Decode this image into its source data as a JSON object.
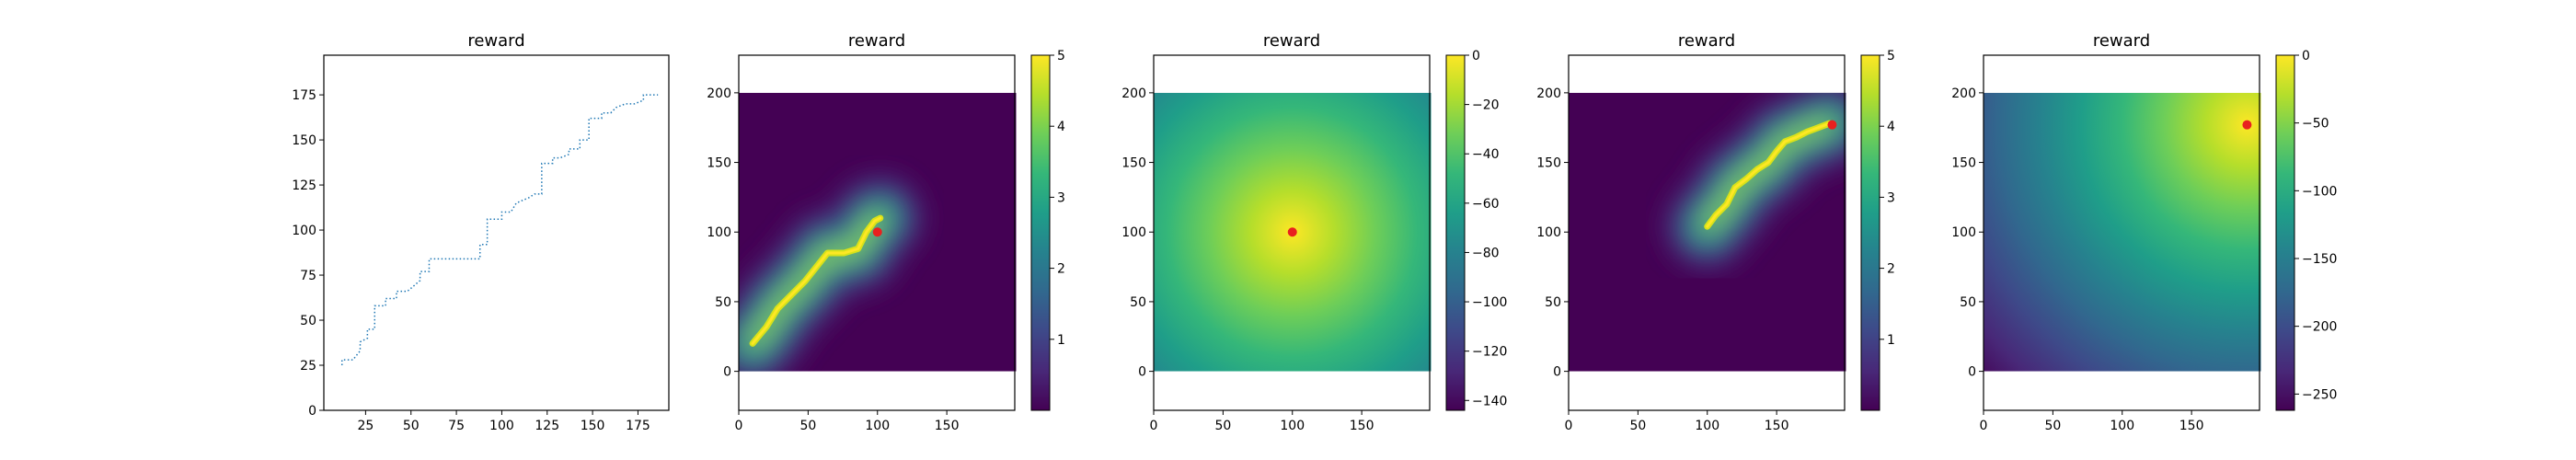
{
  "chart_data": [
    {
      "type": "line",
      "title": "reward",
      "xlabel": "",
      "ylabel": "",
      "xlim": [
        2,
        192
      ],
      "ylim": [
        0,
        197
      ],
      "x_ticks": [
        25,
        50,
        75,
        100,
        125,
        150,
        175
      ],
      "y_ticks": [
        0,
        25,
        50,
        75,
        100,
        125,
        150,
        175
      ],
      "grid": false,
      "line_style": "dotted",
      "line_color": "#1f77b4",
      "series": [
        {
          "points": [
            [
              12,
              25
            ],
            [
              12,
              28
            ],
            [
              18,
              28
            ],
            [
              22,
              33
            ],
            [
              22,
              38
            ],
            [
              26,
              40
            ],
            [
              26,
              45
            ],
            [
              30,
              45
            ],
            [
              30,
              58
            ],
            [
              36,
              58
            ],
            [
              36,
              62
            ],
            [
              42,
              62
            ],
            [
              42,
              66
            ],
            [
              48,
              66
            ],
            [
              55,
              72
            ],
            [
              55,
              77
            ],
            [
              60,
              77
            ],
            [
              60,
              84
            ],
            [
              72,
              84
            ],
            [
              88,
              84
            ],
            [
              88,
              92
            ],
            [
              92,
              92
            ],
            [
              92,
              106
            ],
            [
              100,
              106
            ],
            [
              100,
              110
            ],
            [
              105,
              110
            ],
            [
              108,
              115
            ],
            [
              115,
              118
            ],
            [
              118,
              120
            ],
            [
              122,
              120
            ],
            [
              122,
              137
            ],
            [
              128,
              137
            ],
            [
              128,
              140
            ],
            [
              132,
              140
            ],
            [
              137,
              142
            ],
            [
              137,
              145
            ],
            [
              143,
              145
            ],
            [
              143,
              150
            ],
            [
              148,
              150
            ],
            [
              148,
              162
            ],
            [
              155,
              162
            ],
            [
              155,
              165
            ],
            [
              160,
              165
            ],
            [
              163,
              168
            ],
            [
              168,
              170
            ],
            [
              173,
              170
            ],
            [
              178,
              172
            ],
            [
              178,
              175
            ],
            [
              182,
              175
            ],
            [
              186,
              175
            ]
          ]
        }
      ]
    },
    {
      "type": "heatmap",
      "title": "reward",
      "xlabel": "",
      "ylabel": "",
      "xlim": [
        0,
        199
      ],
      "ylim": [
        -28,
        227
      ],
      "x_ticks": [
        0,
        50,
        100,
        150
      ],
      "y_ticks": [
        0,
        50,
        100,
        150,
        200
      ],
      "extent": [
        0,
        200,
        0,
        200
      ],
      "colormap": "viridis",
      "colorbar": {
        "min": 0,
        "max": 5,
        "ticks": [
          1,
          2,
          3,
          4,
          5
        ]
      },
      "pattern": "ridge along path",
      "path": [
        [
          10,
          20
        ],
        [
          20,
          32
        ],
        [
          28,
          45
        ],
        [
          38,
          55
        ],
        [
          48,
          65
        ],
        [
          56,
          75
        ],
        [
          64,
          85
        ],
        [
          76,
          85
        ],
        [
          86,
          88
        ],
        [
          92,
          100
        ],
        [
          98,
          108
        ],
        [
          102,
          110
        ]
      ],
      "marker": {
        "x": 100,
        "y": 100,
        "color": "#e8211f"
      }
    },
    {
      "type": "heatmap",
      "title": "reward",
      "xlabel": "",
      "ylabel": "",
      "xlim": [
        0,
        199
      ],
      "ylim": [
        -28,
        227
      ],
      "x_ticks": [
        0,
        50,
        100,
        150
      ],
      "y_ticks": [
        0,
        50,
        100,
        150,
        200
      ],
      "extent": [
        0,
        200,
        0,
        200
      ],
      "colormap": "viridis",
      "colorbar": {
        "min": -144,
        "max": 0,
        "ticks": [
          0,
          -20,
          -40,
          -60,
          -80,
          -100,
          -120,
          -140
        ]
      },
      "pattern": "radial from marker",
      "marker": {
        "x": 100,
        "y": 100,
        "color": "#e8211f"
      }
    },
    {
      "type": "heatmap",
      "title": "reward",
      "xlabel": "",
      "ylabel": "",
      "xlim": [
        0,
        199
      ],
      "ylim": [
        -28,
        227
      ],
      "x_ticks": [
        0,
        50,
        100,
        150
      ],
      "y_ticks": [
        0,
        50,
        100,
        150,
        200
      ],
      "extent": [
        0,
        200,
        0,
        200
      ],
      "colormap": "viridis",
      "colorbar": {
        "min": 0,
        "max": 5,
        "ticks": [
          1,
          2,
          3,
          4,
          5
        ]
      },
      "pattern": "ridge along path",
      "path": [
        [
          100,
          104
        ],
        [
          106,
          112
        ],
        [
          114,
          120
        ],
        [
          120,
          132
        ],
        [
          128,
          138
        ],
        [
          136,
          145
        ],
        [
          144,
          150
        ],
        [
          150,
          158
        ],
        [
          156,
          165
        ],
        [
          164,
          168
        ],
        [
          172,
          172
        ],
        [
          180,
          175
        ],
        [
          188,
          178
        ]
      ],
      "marker": {
        "x": 190,
        "y": 177,
        "color": "#e8211f"
      }
    },
    {
      "type": "heatmap",
      "title": "reward",
      "xlabel": "",
      "ylabel": "",
      "xlim": [
        0,
        199
      ],
      "ylim": [
        -28,
        227
      ],
      "x_ticks": [
        0,
        50,
        100,
        150
      ],
      "y_ticks": [
        0,
        50,
        100,
        150,
        200
      ],
      "extent": [
        0,
        200,
        0,
        200
      ],
      "colormap": "viridis",
      "colorbar": {
        "min": -262,
        "max": 0,
        "ticks": [
          0,
          -50,
          -100,
          -150,
          -200,
          -250
        ]
      },
      "pattern": "radial from marker",
      "marker": {
        "x": 190,
        "y": 177,
        "color": "#e8211f"
      }
    }
  ]
}
